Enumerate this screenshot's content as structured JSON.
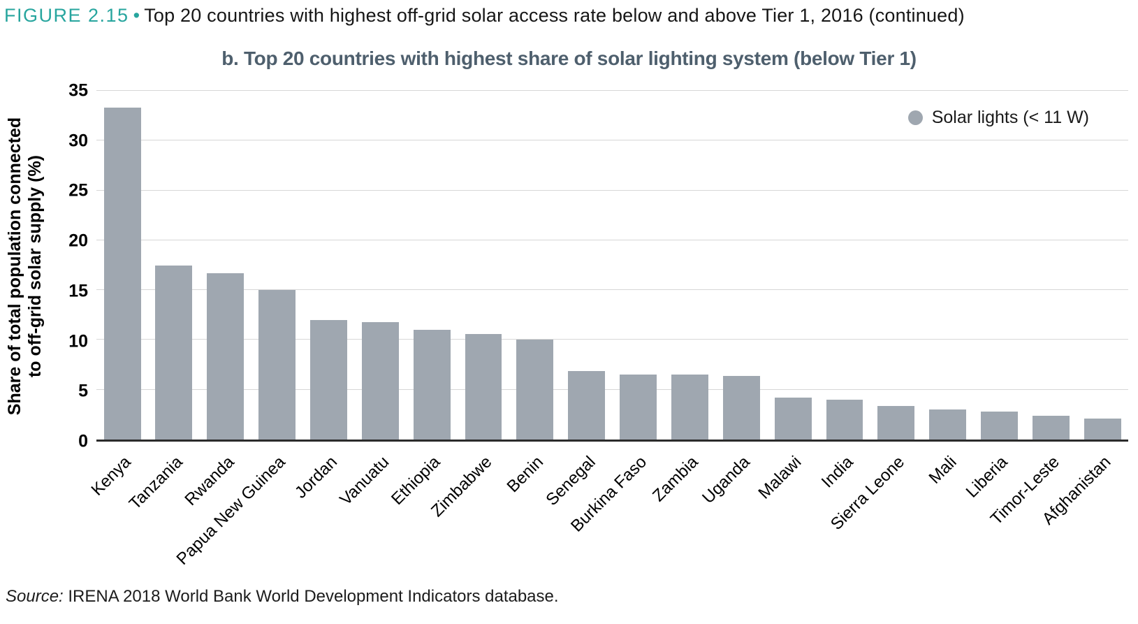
{
  "figure_header": {
    "label": "FIGURE 2.15",
    "bullet": "•",
    "title": "Top 20 countries with highest off-grid solar access rate below and above Tier 1, 2016 (continued)"
  },
  "chart_data": {
    "type": "bar",
    "title": "b. Top 20 countries with highest share of solar lighting system (below Tier 1)",
    "ylabel_line1": "Share of total population connected",
    "ylabel_line2": "to off-grid solar supply (%)",
    "xlabel": "",
    "ylim": [
      0,
      35
    ],
    "yticks": [
      0,
      5,
      10,
      15,
      20,
      25,
      30,
      35
    ],
    "grid": true,
    "legend_position": "top-right",
    "legend_label": "Solar lights (< 11 W)",
    "bar_color": "#9fa7b0",
    "categories": [
      "Kenya",
      "Tanzania",
      "Rwanda",
      "Papua New Guinea",
      "Jordan",
      "Vanuatu",
      "Ethiopia",
      "Zimbabwe",
      "Benin",
      "Senegal",
      "Burkina Faso",
      "Zambia",
      "Uganda",
      "Malawi",
      "India",
      "Sierra Leone",
      "Mali",
      "Liberia",
      "Timor-Leste",
      "Afghanistan"
    ],
    "series": [
      {
        "name": "Solar lights (< 11 W)",
        "values": [
          33.3,
          17.5,
          16.7,
          15.0,
          12.0,
          11.8,
          11.0,
          10.6,
          10.0,
          6.9,
          6.5,
          6.5,
          6.4,
          4.2,
          4.0,
          3.4,
          3.0,
          2.8,
          2.4,
          2.1
        ]
      }
    ]
  },
  "source": {
    "prefix": "Source:",
    "text": " IRENA 2018 World Bank World Development Indicators database."
  },
  "colors": {
    "figure_label_teal": "#27a59e",
    "chart_title_slate": "#4e5f6d",
    "bar_gray": "#9fa7b0",
    "gridline": "#d7d7d7",
    "axis_line": "#2b2b2b"
  }
}
